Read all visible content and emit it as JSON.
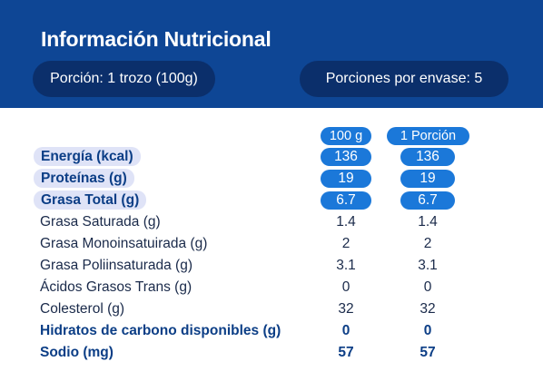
{
  "header": {
    "title": "Información Nutricional",
    "portion": "Porción: 1 trozo (100g)",
    "servings": "Porciones por envase: 5"
  },
  "columns": [
    "100 g",
    "1 Porción"
  ],
  "rows": [
    {
      "label": "Energía (kcal)",
      "per100": "136",
      "perPortion": "136"
    },
    {
      "label": "Proteínas (g)",
      "per100": "19",
      "perPortion": "19"
    },
    {
      "label": "Grasa Total (g)",
      "per100": "6.7",
      "perPortion": "6.7"
    },
    {
      "label": "Grasa Saturada (g)",
      "per100": "1.4",
      "perPortion": "1.4"
    },
    {
      "label": "Grasa Monoinsatuirada (g)",
      "per100": "2",
      "perPortion": "2"
    },
    {
      "label": "Grasa Poliinsaturada (g)",
      "per100": "3.1",
      "perPortion": "3.1"
    },
    {
      "label": "Ácidos Grasos Trans (g)",
      "per100": "0",
      "perPortion": "0"
    },
    {
      "label": "Colesterol (g)",
      "per100": "32",
      "perPortion": "32"
    },
    {
      "label": "Hidratos de carbono disponibles (g)",
      "per100": "0",
      "perPortion": "0"
    },
    {
      "label": "Sodio (mg)",
      "per100": "57",
      "perPortion": "57"
    }
  ],
  "colors": {
    "header_bg": "#0e4695",
    "pill_bg": "#0b2f6b",
    "accent": "#1b78d9",
    "label_highlight": "#dfe3f7",
    "bold_text": "#0c3e86"
  }
}
